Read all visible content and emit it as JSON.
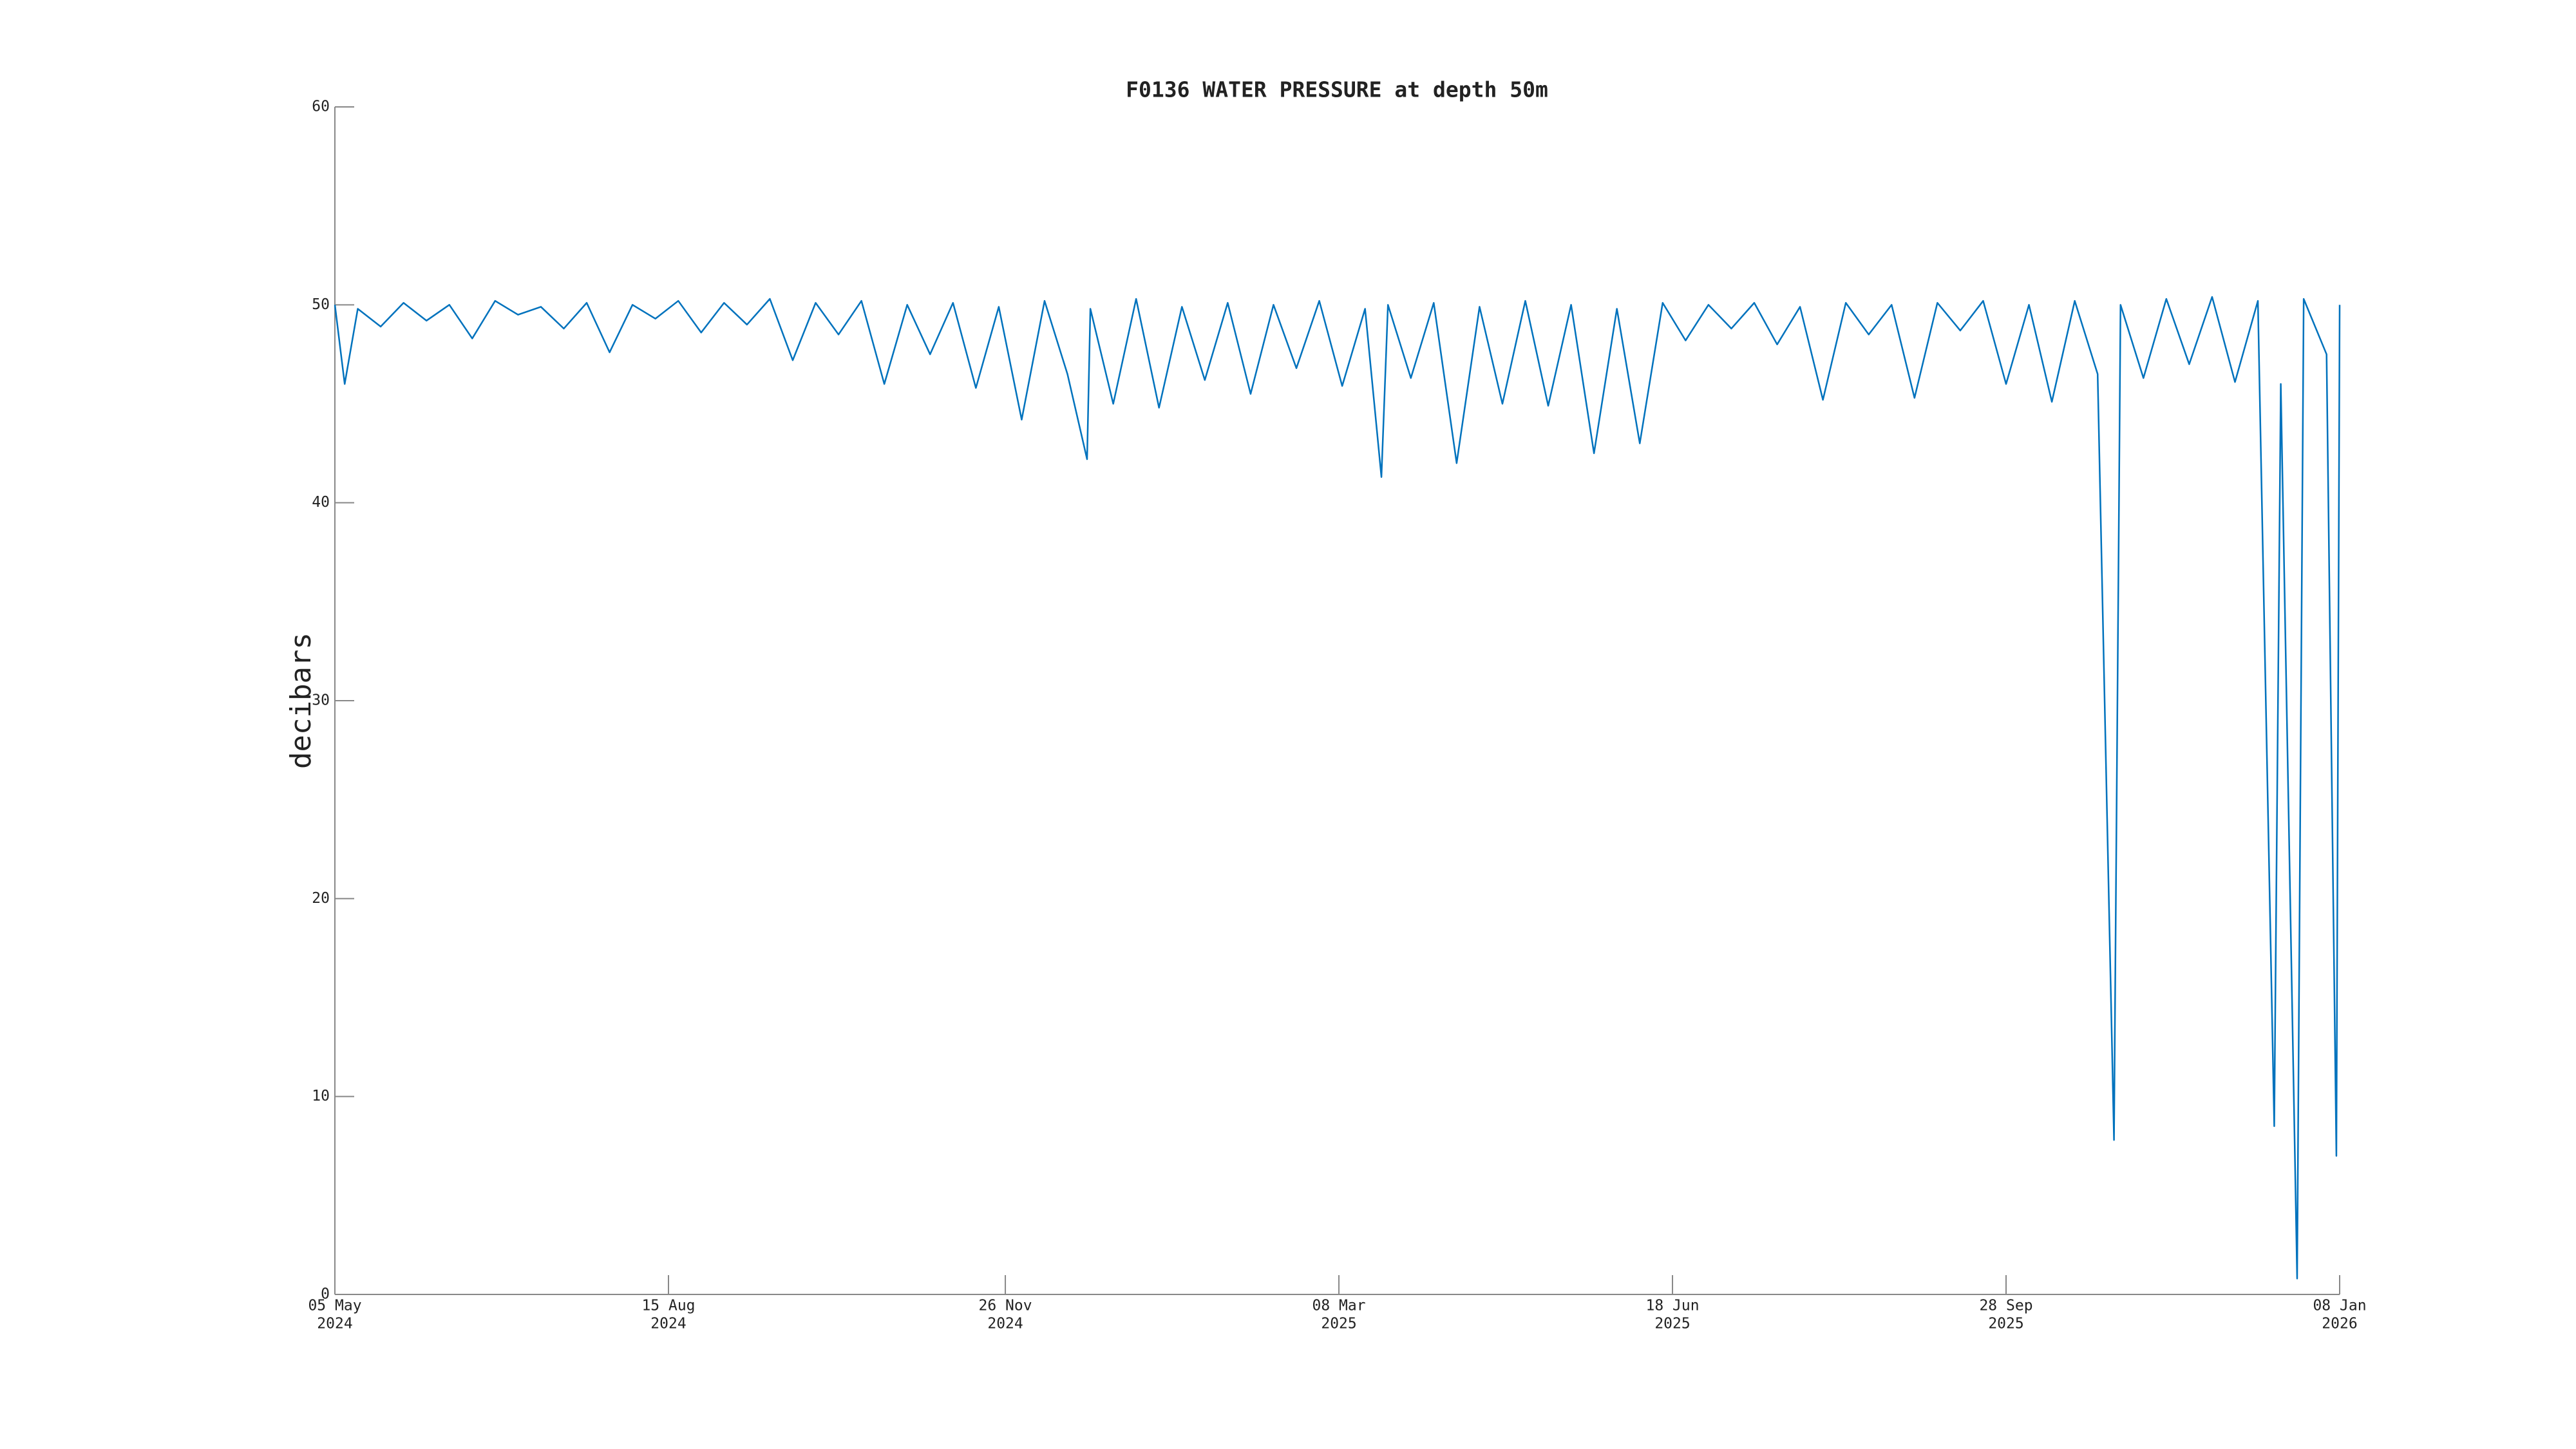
{
  "chart_data": {
    "type": "line",
    "title": "F0136 WATER PRESSURE at depth 50m",
    "y_label": "decibars",
    "xlim": [
      "2024-05-05",
      "2026-01-08"
    ],
    "xticks": [
      {
        "value": "2024-05-05",
        "label": [
          "05 May",
          "2024"
        ]
      },
      {
        "value": "2024-08-15",
        "label": [
          "15 Aug",
          "2024"
        ]
      },
      {
        "value": "2024-11-26",
        "label": [
          "26 Nov",
          "2024"
        ]
      },
      {
        "value": "2025-03-08",
        "label": [
          "08 Mar",
          "2025"
        ]
      },
      {
        "value": "2025-06-18",
        "label": [
          "18 Jun",
          "2025"
        ]
      },
      {
        "value": "2025-09-28",
        "label": [
          "28 Sep",
          "2025"
        ]
      },
      {
        "value": "2026-01-08",
        "label": [
          "08 Jan",
          "2026"
        ]
      }
    ],
    "ylim": [
      0,
      60
    ],
    "yticks": [
      0,
      10,
      20,
      30,
      40,
      50,
      60
    ],
    "x": [
      "2024-05-05",
      "2024-05-08",
      "2024-05-12",
      "2024-05-19",
      "2024-05-26",
      "2024-06-02",
      "2024-06-09",
      "2024-06-16",
      "2024-06-23",
      "2024-06-30",
      "2024-07-07",
      "2024-07-14",
      "2024-07-21",
      "2024-07-28",
      "2024-08-04",
      "2024-08-11",
      "2024-08-18",
      "2024-08-25",
      "2024-09-01",
      "2024-09-08",
      "2024-09-15",
      "2024-09-22",
      "2024-09-29",
      "2024-10-06",
      "2024-10-13",
      "2024-10-20",
      "2024-10-27",
      "2024-11-03",
      "2024-11-10",
      "2024-11-17",
      "2024-11-24",
      "2024-12-01",
      "2024-12-08",
      "2024-12-15",
      "2024-12-21",
      "2024-12-22",
      "2024-12-29",
      "2025-01-05",
      "2025-01-12",
      "2025-01-19",
      "2025-01-26",
      "2025-02-02",
      "2025-02-09",
      "2025-02-16",
      "2025-02-23",
      "2025-03-02",
      "2025-03-09",
      "2025-03-16",
      "2025-03-21",
      "2025-03-23",
      "2025-03-30",
      "2025-04-06",
      "2025-04-13",
      "2025-04-20",
      "2025-04-27",
      "2025-05-04",
      "2025-05-11",
      "2025-05-18",
      "2025-05-25",
      "2025-06-01",
      "2025-06-08",
      "2025-06-15",
      "2025-06-22",
      "2025-06-29",
      "2025-07-06",
      "2025-07-13",
      "2025-07-20",
      "2025-07-27",
      "2025-08-03",
      "2025-08-10",
      "2025-08-17",
      "2025-08-24",
      "2025-08-31",
      "2025-09-07",
      "2025-09-14",
      "2025-09-21",
      "2025-09-28",
      "2025-10-05",
      "2025-10-12",
      "2025-10-19",
      "2025-10-26",
      "2025-10-31",
      "2025-11-02",
      "2025-11-09",
      "2025-11-16",
      "2025-11-23",
      "2025-11-30",
      "2025-12-07",
      "2025-12-14",
      "2025-12-19",
      "2025-12-21",
      "2025-12-26",
      "2025-12-28",
      "2026-01-04",
      "2026-01-07",
      "2026-01-08"
    ],
    "series": [
      {
        "color": "#0072bd",
        "values": [
          50.0,
          46.0,
          49.8,
          48.9,
          50.1,
          49.2,
          50.0,
          48.3,
          50.2,
          49.5,
          49.9,
          48.8,
          50.1,
          47.6,
          50.0,
          49.3,
          50.2,
          48.6,
          50.1,
          49.0,
          50.3,
          47.2,
          50.1,
          48.5,
          50.2,
          46.0,
          50.0,
          47.5,
          50.1,
          45.8,
          49.9,
          44.2,
          50.2,
          46.5,
          42.2,
          49.8,
          45.0,
          50.3,
          44.8,
          49.9,
          46.2,
          50.1,
          45.5,
          50.0,
          46.8,
          50.2,
          45.9,
          49.8,
          41.3,
          50.0,
          46.3,
          50.1,
          42.0,
          49.9,
          45.0,
          50.2,
          44.9,
          50.0,
          42.5,
          49.8,
          43.0,
          50.1,
          48.2,
          50.0,
          48.8,
          50.1,
          48.0,
          49.9,
          45.2,
          50.1,
          48.5,
          50.0,
          45.3,
          50.1,
          48.7,
          50.2,
          46.0,
          50.0,
          45.1,
          50.2,
          46.5,
          7.8,
          50.0,
          46.3,
          50.3,
          47.0,
          50.4,
          46.1,
          50.2,
          8.5,
          46.0,
          0.8,
          50.3,
          47.5,
          7.0,
          50.0
        ]
      }
    ]
  }
}
